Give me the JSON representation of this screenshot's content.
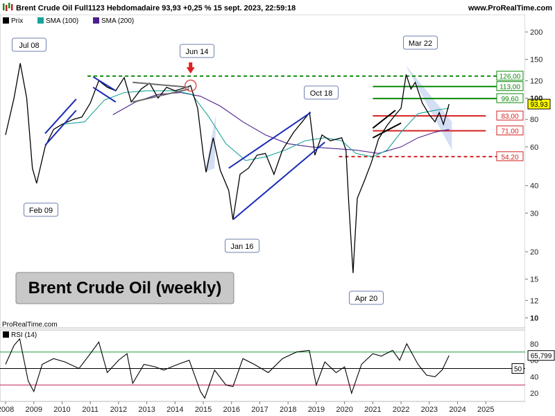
{
  "header": {
    "title": "Brent Crude Oil Full1123 Hebdomadaire 93,93 +0,25 % 15 sept. 2023, 22:59:18",
    "site": "www.ProRealTime.com",
    "watermark": "ProRealTime.com"
  },
  "legend": [
    {
      "label": "Prix",
      "color": "#000000"
    },
    {
      "label": "SMA (100)",
      "color": "#1aa39a"
    },
    {
      "label": "SMA (200)",
      "color": "#4b1f8c"
    }
  ],
  "big_label": "Brent Crude Oil (weekly)",
  "annotations": {
    "jul08": "Jul 08",
    "feb09": "Feb 09",
    "jun14": "Jun 14",
    "jan16": "Jan 16",
    "oct18": "Oct 18",
    "apr20": "Apr 20",
    "mar22": "Mar 22"
  },
  "levels": [
    {
      "label": "126,00",
      "value": 126,
      "color": "#0a8a0a",
      "style": "dashed"
    },
    {
      "label": "113,00",
      "value": 113,
      "color": "#0a8a0a",
      "style": "solid"
    },
    {
      "label": "99,60",
      "value": 99.6,
      "color": "#0a8a0a",
      "style": "solid"
    },
    {
      "label": "83,00",
      "value": 83,
      "color": "#d42020",
      "style": "solid"
    },
    {
      "label": "71,00",
      "value": 71,
      "color": "#d42020",
      "style": "solid"
    },
    {
      "label": "54,20",
      "value": 54.2,
      "color": "#d42020",
      "style": "dashed"
    }
  ],
  "current_price": "93,93",
  "rsi": {
    "label": "RSI (14)",
    "value_label": "65,799",
    "level_label": "50"
  },
  "chart_data": {
    "type": "line",
    "scale": "log",
    "ylim": [
      9,
      240
    ],
    "xlim": [
      2008,
      2026
    ],
    "y_ticks": [
      "200",
      "150",
      "120",
      "100",
      "80",
      "60",
      "40",
      "30",
      "20",
      "15",
      "12",
      "10"
    ],
    "x_ticks": [
      "2008",
      "2009",
      "2010",
      "2011",
      "2012",
      "2013",
      "2014",
      "2015",
      "2016",
      "2017",
      "2018",
      "2019",
      "2020",
      "2021",
      "2022",
      "2023",
      "2024",
      "2025"
    ],
    "series": [
      {
        "name": "Prix",
        "color": "#000000",
        "points": [
          [
            2008.0,
            68
          ],
          [
            2008.3,
            100
          ],
          [
            2008.52,
            144
          ],
          [
            2008.75,
            100
          ],
          [
            2008.95,
            48
          ],
          [
            2009.1,
            41
          ],
          [
            2009.4,
            60
          ],
          [
            2009.7,
            72
          ],
          [
            2010.0,
            76
          ],
          [
            2010.4,
            80
          ],
          [
            2010.7,
            82
          ],
          [
            2011.0,
            95
          ],
          [
            2011.3,
            120
          ],
          [
            2011.6,
            112
          ],
          [
            2011.9,
            108
          ],
          [
            2012.2,
            124
          ],
          [
            2012.45,
            96
          ],
          [
            2012.8,
            110
          ],
          [
            2013.1,
            117
          ],
          [
            2013.4,
            100
          ],
          [
            2013.7,
            112
          ],
          [
            2014.0,
            108
          ],
          [
            2014.4,
            112
          ],
          [
            2014.55,
            114
          ],
          [
            2014.8,
            90
          ],
          [
            2015.0,
            55
          ],
          [
            2015.1,
            46
          ],
          [
            2015.35,
            66
          ],
          [
            2015.6,
            47
          ],
          [
            2015.9,
            38
          ],
          [
            2016.05,
            28
          ],
          [
            2016.3,
            45
          ],
          [
            2016.6,
            48
          ],
          [
            2016.9,
            55
          ],
          [
            2017.2,
            56
          ],
          [
            2017.5,
            45
          ],
          [
            2017.8,
            58
          ],
          [
            2018.2,
            70
          ],
          [
            2018.5,
            78
          ],
          [
            2018.76,
            86
          ],
          [
            2018.95,
            55
          ],
          [
            2019.2,
            68
          ],
          [
            2019.5,
            64
          ],
          [
            2019.9,
            66
          ],
          [
            2020.05,
            58
          ],
          [
            2020.15,
            33
          ],
          [
            2020.3,
            16
          ],
          [
            2020.45,
            35
          ],
          [
            2020.7,
            42
          ],
          [
            2020.95,
            51
          ],
          [
            2021.2,
            65
          ],
          [
            2021.5,
            75
          ],
          [
            2021.8,
            84
          ],
          [
            2022.0,
            90
          ],
          [
            2022.18,
            128
          ],
          [
            2022.35,
            110
          ],
          [
            2022.5,
            118
          ],
          [
            2022.75,
            95
          ],
          [
            2023.0,
            84
          ],
          [
            2023.2,
            78
          ],
          [
            2023.35,
            86
          ],
          [
            2023.5,
            76
          ],
          [
            2023.7,
            93.93
          ]
        ]
      },
      {
        "name": "SMA (100)",
        "color": "#1aa39a",
        "points": [
          [
            2010.0,
            76
          ],
          [
            2010.8,
            78
          ],
          [
            2011.5,
            98
          ],
          [
            2012.2,
            106
          ],
          [
            2013.0,
            108
          ],
          [
            2014.0,
            108
          ],
          [
            2014.6,
            104
          ],
          [
            2015.2,
            82
          ],
          [
            2015.8,
            62
          ],
          [
            2016.5,
            52
          ],
          [
            2017.2,
            54
          ],
          [
            2017.9,
            58
          ],
          [
            2018.6,
            64
          ],
          [
            2019.3,
            66
          ],
          [
            2019.9,
            64
          ],
          [
            2020.4,
            56
          ],
          [
            2021.0,
            54
          ],
          [
            2021.5,
            58
          ],
          [
            2022.0,
            70
          ],
          [
            2022.6,
            85
          ],
          [
            2023.2,
            88
          ],
          [
            2023.7,
            90
          ]
        ]
      },
      {
        "name": "SMA (200)",
        "color": "#4b1f8c",
        "points": [
          [
            2011.8,
            84
          ],
          [
            2012.6,
            96
          ],
          [
            2013.4,
            104
          ],
          [
            2014.2,
            106
          ],
          [
            2014.9,
            102
          ],
          [
            2015.6,
            92
          ],
          [
            2016.4,
            78
          ],
          [
            2017.2,
            68
          ],
          [
            2018.0,
            62
          ],
          [
            2018.8,
            60
          ],
          [
            2019.6,
            59
          ],
          [
            2020.4,
            58
          ],
          [
            2021.2,
            56
          ],
          [
            2022.0,
            60
          ],
          [
            2022.6,
            66
          ],
          [
            2023.2,
            70
          ],
          [
            2023.7,
            72
          ]
        ]
      }
    ],
    "rsi_series": {
      "name": "RSI (14)",
      "ylim": [
        10,
        95
      ],
      "levels": [
        70,
        50,
        30
      ],
      "points": [
        [
          2008.0,
          55
        ],
        [
          2008.3,
          78
        ],
        [
          2008.5,
          86
        ],
        [
          2008.8,
          35
        ],
        [
          2009.0,
          22
        ],
        [
          2009.3,
          55
        ],
        [
          2009.7,
          62
        ],
        [
          2010.1,
          58
        ],
        [
          2010.6,
          50
        ],
        [
          2011.0,
          68
        ],
        [
          2011.3,
          82
        ],
        [
          2011.6,
          45
        ],
        [
          2012.0,
          60
        ],
        [
          2012.3,
          68
        ],
        [
          2012.5,
          32
        ],
        [
          2012.9,
          55
        ],
        [
          2013.3,
          52
        ],
        [
          2013.6,
          48
        ],
        [
          2014.1,
          55
        ],
        [
          2014.5,
          60
        ],
        [
          2014.9,
          22
        ],
        [
          2015.05,
          14
        ],
        [
          2015.4,
          48
        ],
        [
          2015.8,
          30
        ],
        [
          2016.05,
          28
        ],
        [
          2016.4,
          62
        ],
        [
          2016.8,
          55
        ],
        [
          2017.3,
          45
        ],
        [
          2017.8,
          62
        ],
        [
          2018.3,
          70
        ],
        [
          2018.75,
          72
        ],
        [
          2019.0,
          30
        ],
        [
          2019.3,
          58
        ],
        [
          2019.7,
          45
        ],
        [
          2020.0,
          52
        ],
        [
          2020.25,
          20
        ],
        [
          2020.6,
          55
        ],
        [
          2021.0,
          68
        ],
        [
          2021.3,
          65
        ],
        [
          2021.7,
          72
        ],
        [
          2021.95,
          60
        ],
        [
          2022.2,
          80
        ],
        [
          2022.6,
          55
        ],
        [
          2022.9,
          42
        ],
        [
          2023.2,
          40
        ],
        [
          2023.45,
          48
        ],
        [
          2023.7,
          65.8
        ]
      ]
    }
  }
}
